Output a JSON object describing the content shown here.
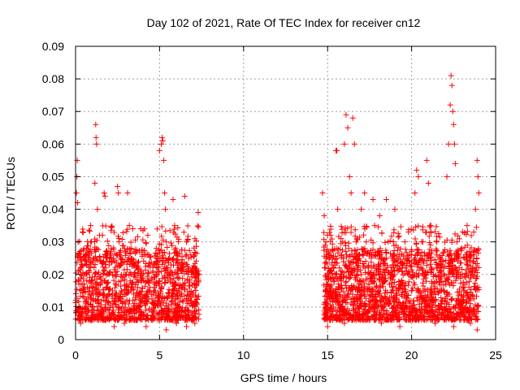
{
  "chart_data": {
    "type": "scatter",
    "title": "Day 102 of 2021, Rate Of TEC Index for receiver cn12",
    "xlabel": "GPS time / hours",
    "ylabel": "ROTI / TECUs",
    "xlim": [
      0,
      25
    ],
    "ylim": [
      0,
      0.09
    ],
    "x_ticks": [
      0,
      5,
      10,
      15,
      20,
      25
    ],
    "x_tick_labels": [
      "0",
      "5",
      "10",
      "15",
      "20",
      "25"
    ],
    "y_ticks": [
      0,
      0.01,
      0.02,
      0.03,
      0.04,
      0.05,
      0.06,
      0.07,
      0.08,
      0.09
    ],
    "y_tick_labels": [
      "0",
      "0.01",
      "0.02",
      "0.03",
      "0.04",
      "0.05",
      "0.06",
      "0.07",
      "0.08",
      "0.09"
    ],
    "grid": true,
    "marker": "plus",
    "marker_color": "#ff0000",
    "series": [
      {
        "points": [
          [
            0.0,
            0.012
          ],
          [
            0.05,
            0.045
          ],
          [
            0.08,
            0.05
          ],
          [
            0.1,
            0.055
          ],
          [
            0.12,
            0.042
          ],
          [
            0.15,
            0.03
          ],
          [
            0.2,
            0.018
          ],
          [
            0.25,
            0.01
          ],
          [
            0.3,
            0.022
          ],
          [
            0.35,
            0.015
          ],
          [
            0.4,
            0.008
          ],
          [
            0.45,
            0.025
          ],
          [
            0.5,
            0.013
          ],
          [
            0.55,
            0.02
          ],
          [
            0.6,
            0.011
          ],
          [
            0.65,
            0.028
          ],
          [
            0.7,
            0.016
          ],
          [
            0.75,
            0.009
          ],
          [
            0.8,
            0.021
          ],
          [
            0.85,
            0.014
          ],
          [
            0.9,
            0.035
          ],
          [
            0.95,
            0.03
          ],
          [
            1.0,
            0.018
          ],
          [
            1.05,
            0.012
          ],
          [
            1.1,
            0.025
          ],
          [
            1.15,
            0.048
          ],
          [
            1.2,
            0.066
          ],
          [
            1.22,
            0.062
          ],
          [
            1.25,
            0.06
          ],
          [
            1.3,
            0.04
          ],
          [
            1.35,
            0.02
          ],
          [
            1.4,
            0.014
          ],
          [
            1.5,
            0.01
          ],
          [
            1.6,
            0.032
          ],
          [
            1.7,
            0.045
          ],
          [
            1.75,
            0.044
          ],
          [
            1.8,
            0.022
          ],
          [
            1.9,
            0.016
          ],
          [
            2.0,
            0.009
          ],
          [
            2.1,
            0.027
          ],
          [
            2.2,
            0.015
          ],
          [
            2.3,
            0.012
          ],
          [
            2.4,
            0.02
          ],
          [
            2.5,
            0.047
          ],
          [
            2.55,
            0.045
          ],
          [
            2.6,
            0.03
          ],
          [
            2.7,
            0.018
          ],
          [
            2.8,
            0.011
          ],
          [
            2.9,
            0.024
          ],
          [
            3.0,
            0.014
          ],
          [
            3.1,
            0.045
          ],
          [
            3.2,
            0.035
          ],
          [
            3.3,
            0.02
          ],
          [
            3.4,
            0.012
          ],
          [
            3.5,
            0.008
          ],
          [
            3.6,
            0.022
          ],
          [
            3.7,
            0.016
          ],
          [
            3.8,
            0.01
          ],
          [
            3.9,
            0.019
          ],
          [
            4.0,
            0.013
          ],
          [
            4.1,
            0.026
          ],
          [
            4.2,
            0.011
          ],
          [
            4.3,
            0.032
          ],
          [
            4.4,
            0.018
          ],
          [
            4.5,
            0.009
          ],
          [
            4.6,
            0.021
          ],
          [
            4.7,
            0.015
          ],
          [
            4.8,
            0.028
          ],
          [
            4.9,
            0.012
          ],
          [
            5.0,
            0.058
          ],
          [
            5.1,
            0.06
          ],
          [
            5.15,
            0.062
          ],
          [
            5.2,
            0.061
          ],
          [
            5.25,
            0.055
          ],
          [
            5.3,
            0.045
          ],
          [
            5.35,
            0.04
          ],
          [
            5.4,
            0.03
          ],
          [
            5.5,
            0.018
          ],
          [
            5.6,
            0.025
          ],
          [
            5.7,
            0.013
          ],
          [
            5.8,
            0.043
          ],
          [
            5.9,
            0.035
          ],
          [
            6.0,
            0.02
          ],
          [
            6.1,
            0.015
          ],
          [
            6.2,
            0.01
          ],
          [
            6.3,
            0.023
          ],
          [
            6.4,
            0.017
          ],
          [
            6.5,
            0.044
          ],
          [
            6.6,
            0.03
          ],
          [
            6.7,
            0.02
          ],
          [
            6.8,
            0.014
          ],
          [
            6.9,
            0.011
          ],
          [
            7.0,
            0.022
          ],
          [
            7.1,
            0.016
          ],
          [
            7.2,
            0.013
          ],
          [
            7.3,
            0.039
          ],
          [
            7.35,
            0.02
          ],
          [
            0.3,
            0.005
          ],
          [
            0.9,
            0.006
          ],
          [
            1.6,
            0.007
          ],
          [
            2.3,
            0.004
          ],
          [
            2.9,
            0.005
          ],
          [
            3.6,
            0.006
          ],
          [
            4.2,
            0.004
          ],
          [
            4.9,
            0.006
          ],
          [
            5.4,
            0.003
          ],
          [
            6.0,
            0.005
          ],
          [
            6.6,
            0.004
          ],
          [
            7.1,
            0.005
          ],
          [
            14.7,
            0.045
          ],
          [
            14.8,
            0.038
          ],
          [
            14.9,
            0.03
          ],
          [
            15.0,
            0.02
          ],
          [
            15.1,
            0.015
          ],
          [
            15.2,
            0.01
          ],
          [
            15.3,
            0.025
          ],
          [
            15.4,
            0.018
          ],
          [
            15.5,
            0.058
          ],
          [
            15.55,
            0.058
          ],
          [
            15.6,
            0.04
          ],
          [
            15.7,
            0.022
          ],
          [
            15.8,
            0.013
          ],
          [
            15.9,
            0.03
          ],
          [
            16.0,
            0.06
          ],
          [
            16.1,
            0.069
          ],
          [
            16.2,
            0.065
          ],
          [
            16.3,
            0.05
          ],
          [
            16.4,
            0.045
          ],
          [
            16.5,
            0.068
          ],
          [
            16.6,
            0.06
          ],
          [
            16.7,
            0.03
          ],
          [
            16.8,
            0.02
          ],
          [
            16.9,
            0.015
          ],
          [
            17.0,
            0.04
          ],
          [
            17.2,
            0.045
          ],
          [
            17.3,
            0.03
          ],
          [
            17.5,
            0.02
          ],
          [
            17.6,
            0.025
          ],
          [
            17.7,
            0.043
          ],
          [
            17.8,
            0.035
          ],
          [
            17.9,
            0.02
          ],
          [
            18.0,
            0.015
          ],
          [
            18.1,
            0.038
          ],
          [
            18.2,
            0.025
          ],
          [
            18.4,
            0.018
          ],
          [
            18.5,
            0.043
          ],
          [
            18.6,
            0.03
          ],
          [
            18.8,
            0.02
          ],
          [
            18.9,
            0.015
          ],
          [
            19.0,
            0.04
          ],
          [
            19.2,
            0.025
          ],
          [
            19.4,
            0.018
          ],
          [
            19.6,
            0.03
          ],
          [
            19.8,
            0.02
          ],
          [
            20.0,
            0.015
          ],
          [
            20.2,
            0.045
          ],
          [
            20.3,
            0.052
          ],
          [
            20.4,
            0.05
          ],
          [
            20.6,
            0.03
          ],
          [
            20.8,
            0.02
          ],
          [
            20.9,
            0.055
          ],
          [
            21.0,
            0.048
          ],
          [
            21.1,
            0.035
          ],
          [
            21.3,
            0.02
          ],
          [
            21.5,
            0.03
          ],
          [
            21.7,
            0.025
          ],
          [
            21.9,
            0.015
          ],
          [
            22.1,
            0.05
          ],
          [
            22.2,
            0.06
          ],
          [
            22.3,
            0.072
          ],
          [
            22.35,
            0.081
          ],
          [
            22.4,
            0.078
          ],
          [
            22.45,
            0.07
          ],
          [
            22.5,
            0.066
          ],
          [
            22.55,
            0.06
          ],
          [
            22.6,
            0.054
          ],
          [
            22.7,
            0.03
          ],
          [
            22.9,
            0.02
          ],
          [
            23.1,
            0.015
          ],
          [
            23.3,
            0.035
          ],
          [
            23.5,
            0.025
          ],
          [
            23.7,
            0.033
          ],
          [
            23.8,
            0.04
          ],
          [
            23.9,
            0.055
          ],
          [
            23.95,
            0.05
          ],
          [
            24.0,
            0.045
          ],
          [
            15.0,
            0.004
          ],
          [
            16.0,
            0.005
          ],
          [
            17.1,
            0.006
          ],
          [
            18.2,
            0.005
          ],
          [
            19.3,
            0.004
          ],
          [
            20.4,
            0.006
          ],
          [
            21.4,
            0.005
          ],
          [
            22.5,
            0.004
          ],
          [
            23.5,
            0.005
          ],
          [
            23.9,
            0.003
          ]
        ]
      }
    ]
  }
}
